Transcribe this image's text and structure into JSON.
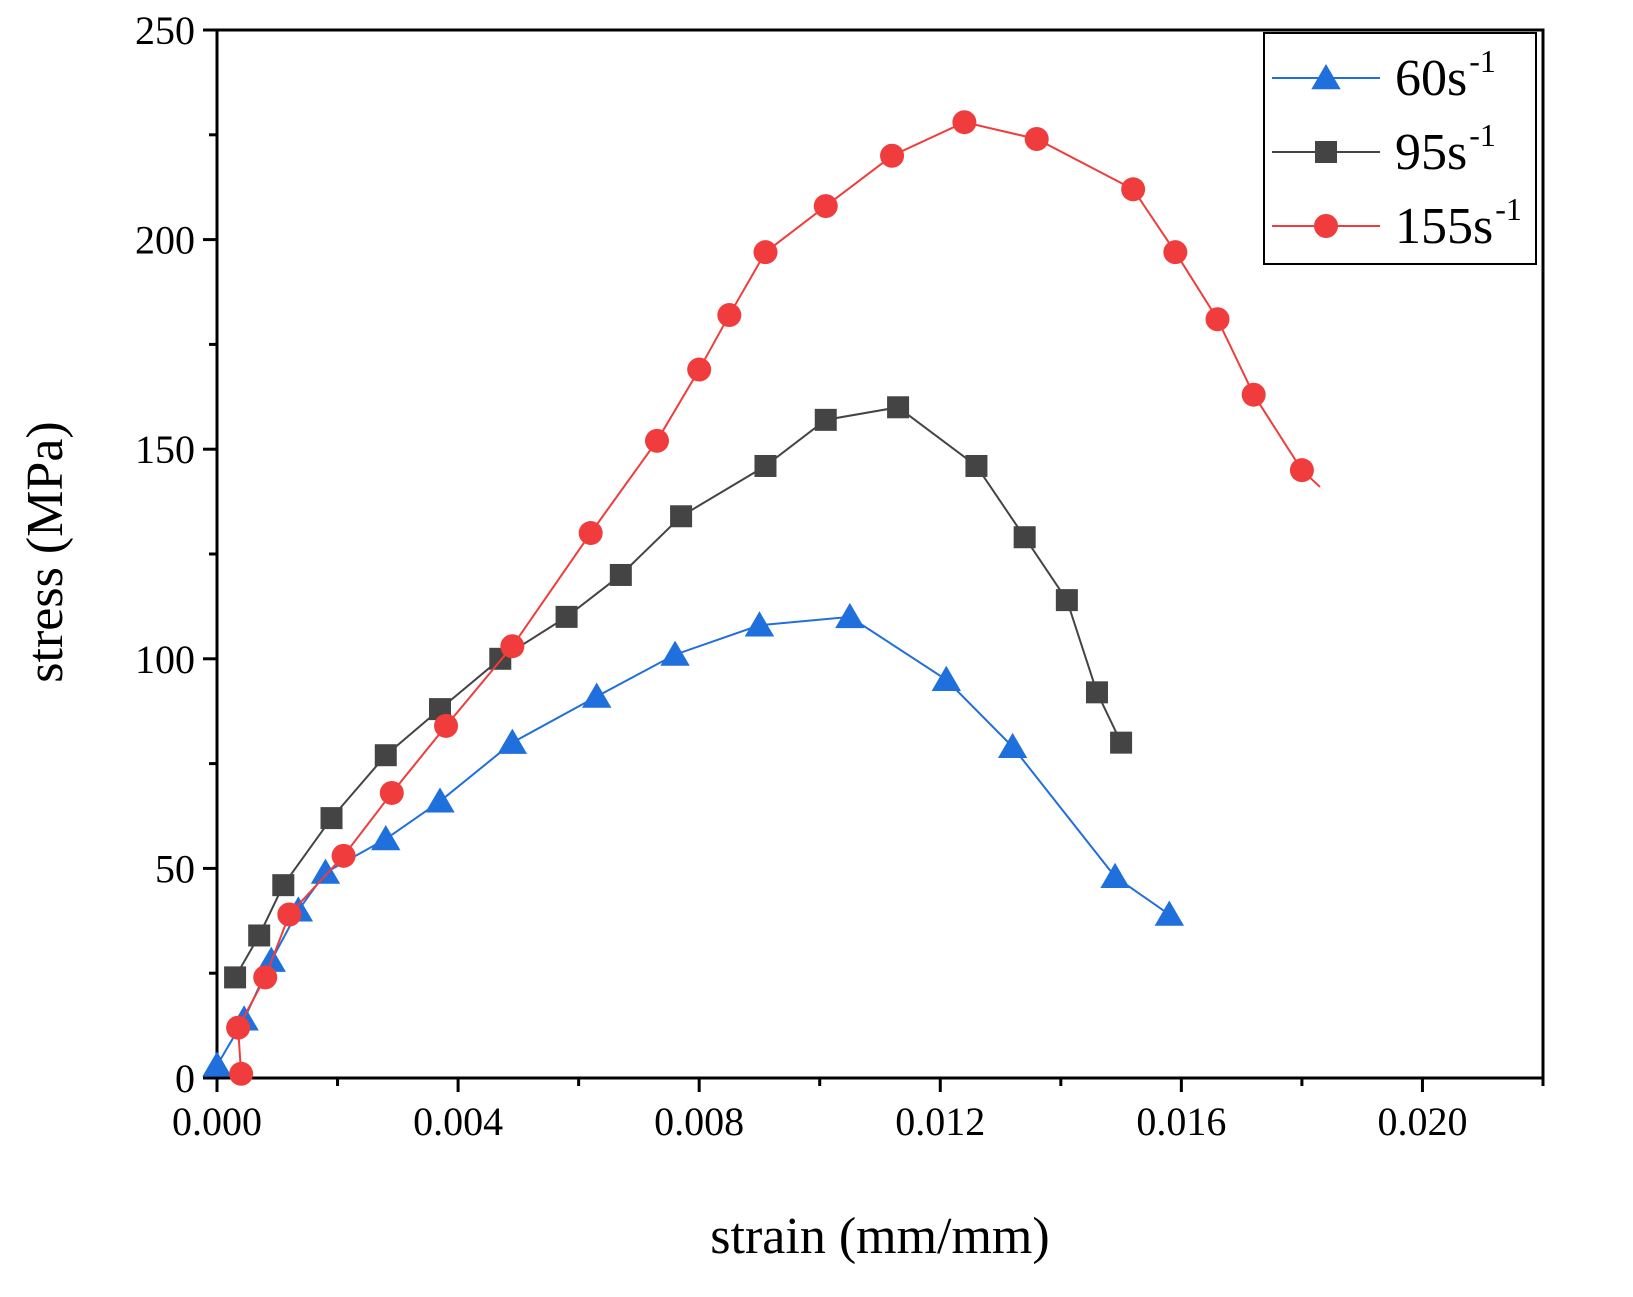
{
  "chart_data": {
    "type": "line",
    "xlabel": "strain (mm/mm)",
    "ylabel": "stress (MPa)",
    "xlim": [
      0,
      0.022
    ],
    "ylim": [
      0,
      250
    ],
    "x_ticks": [
      0,
      0.004,
      0.008,
      0.012,
      0.016,
      0.02
    ],
    "x_tick_labels": [
      "0.000",
      "0.004",
      "0.008",
      "0.012",
      "0.016",
      "0.020"
    ],
    "y_ticks": [
      0,
      50,
      100,
      150,
      200,
      250
    ],
    "y_tick_labels": [
      "0",
      "50",
      "100",
      "150",
      "200",
      "250"
    ],
    "legend_position": "top-right",
    "series": [
      {
        "name": "60s",
        "sup": "-1",
        "color": "#1f6fdc",
        "marker": "triangle",
        "x": [
          0.0,
          0.00045,
          0.0009,
          0.00135,
          0.0018,
          0.0028,
          0.0037,
          0.0049,
          0.0063,
          0.0076,
          0.009,
          0.0105,
          0.0121,
          0.0132,
          0.0149,
          0.0158
        ],
        "y": [
          3,
          14,
          28,
          40,
          49,
          57,
          66,
          80,
          91,
          101,
          108,
          110,
          95,
          79,
          48,
          39
        ]
      },
      {
        "name": "95s",
        "sup": "-1",
        "color": "#444444",
        "marker": "square",
        "x": [
          0.0003,
          0.0007,
          0.0011,
          0.0019,
          0.0028,
          0.0037,
          0.0047,
          0.0058,
          0.0067,
          0.0077,
          0.0091,
          0.0101,
          0.0113,
          0.0126,
          0.0134,
          0.0141,
          0.0146,
          0.015
        ],
        "y": [
          24,
          34,
          46,
          62,
          77,
          88,
          100,
          110,
          120,
          134,
          146,
          157,
          160,
          146,
          129,
          114,
          92,
          80
        ],
        "x_end": 0.0151,
        "y_end": 78
      },
      {
        "name": "155s",
        "sup": "-1",
        "color": "#f03c3c",
        "marker": "circle",
        "x": [
          0.0004,
          0.00035,
          0.0008,
          0.0012,
          0.0021,
          0.0029,
          0.0038,
          0.0049,
          0.0062,
          0.0073,
          0.008,
          0.0085,
          0.0091,
          0.0101,
          0.0112,
          0.0124,
          0.0136,
          0.0152,
          0.0159,
          0.0166,
          0.0172,
          0.018
        ],
        "y": [
          1,
          12,
          24,
          39,
          53,
          68,
          84,
          103,
          130,
          152,
          169,
          182,
          197,
          208,
          220,
          228,
          224,
          212,
          197,
          181,
          163,
          145
        ],
        "x_end": 0.0183,
        "y_end": 141
      }
    ]
  }
}
